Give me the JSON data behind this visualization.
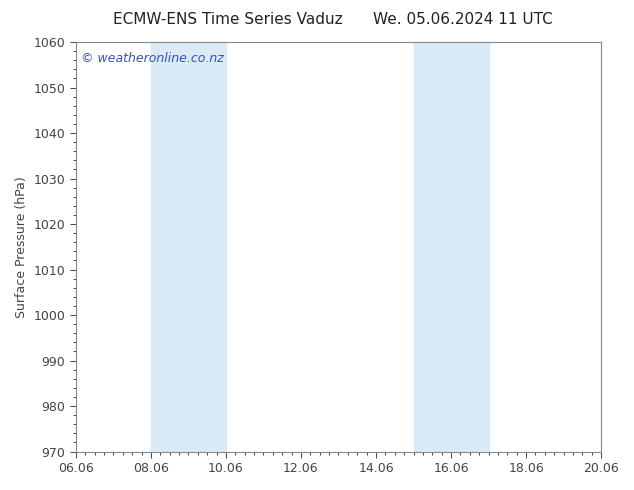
{
  "title_left": "ECMW-ENS Time Series Vaduz",
  "title_right": "We. 05.06.2024 11 UTC",
  "ylabel": "Surface Pressure (hPa)",
  "ylim": [
    970,
    1060
  ],
  "yticks": [
    970,
    980,
    990,
    1000,
    1010,
    1020,
    1030,
    1040,
    1050,
    1060
  ],
  "xlim": [
    0,
    14
  ],
  "xtick_labels": [
    "06.06",
    "08.06",
    "10.06",
    "12.06",
    "14.06",
    "16.06",
    "18.06",
    "20.06"
  ],
  "xtick_positions": [
    0,
    2,
    4,
    6,
    8,
    10,
    12,
    14
  ],
  "shaded_regions": [
    {
      "xmin": 2.0,
      "xmax": 4.0
    },
    {
      "xmin": 9.0,
      "xmax": 11.0
    }
  ],
  "shaded_color": "#daeaf7",
  "watermark_text": "© weatheronline.co.nz",
  "watermark_color": "#3355bb",
  "bg_color": "#ffffff",
  "plot_bg_color": "#ffffff",
  "spine_color": "#888888",
  "tick_color": "#444444",
  "title_color": "#222222",
  "title_fontsize": 11,
  "label_fontsize": 9,
  "tick_fontsize": 9,
  "watermark_fontsize": 9
}
